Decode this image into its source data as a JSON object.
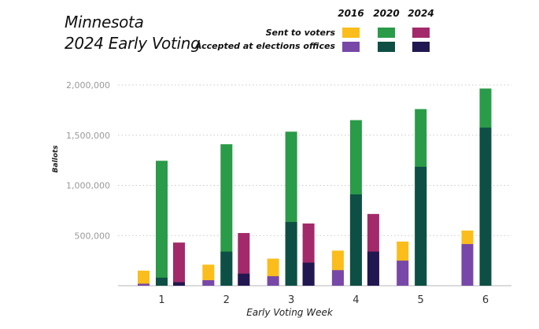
{
  "title_line1": "Minnesota",
  "title_line2": "2024 Early Voting",
  "chart_data": {
    "type": "bar",
    "title": "Minnesota 2024 Early Voting",
    "xlabel": "Early Voting Week",
    "ylabel": "Ballots",
    "ylim": [
      0,
      2000000
    ],
    "yticks": [
      500000,
      1000000,
      1500000,
      2000000
    ],
    "ytick_labels": [
      "500,000",
      "1,000,000",
      "1,500,000",
      "2,000,000"
    ],
    "categories": [
      "1",
      "2",
      "3",
      "4",
      "5",
      "6"
    ],
    "years": [
      "2016",
      "2020",
      "2024"
    ],
    "measures": [
      "Sent to voters",
      "Accepted at elections offices"
    ],
    "colors": {
      "2016": {
        "sent": "#fbbd1b",
        "accepted": "#7748a8"
      },
      "2020": {
        "sent": "#2a9b48",
        "accepted": "#0e4f45"
      },
      "2024": {
        "sent": "#a32a6a",
        "accepted": "#221851"
      }
    },
    "series": [
      {
        "year": "2016",
        "measure": "sent",
        "values": [
          150000,
          210000,
          270000,
          350000,
          440000,
          550000
        ]
      },
      {
        "year": "2016",
        "measure": "accepted",
        "values": [
          20000,
          55000,
          95000,
          155000,
          250000,
          415000
        ]
      },
      {
        "year": "2020",
        "measure": "sent",
        "values": [
          1245000,
          1410000,
          1535000,
          1650000,
          1760000,
          1965000
        ]
      },
      {
        "year": "2020",
        "measure": "accepted",
        "values": [
          80000,
          340000,
          635000,
          910000,
          1185000,
          1575000
        ]
      },
      {
        "year": "2024",
        "measure": "sent",
        "values": [
          430000,
          525000,
          620000,
          715000,
          null,
          null
        ]
      },
      {
        "year": "2024",
        "measure": "accepted",
        "values": [
          35000,
          120000,
          230000,
          340000,
          null,
          null
        ]
      }
    ]
  }
}
